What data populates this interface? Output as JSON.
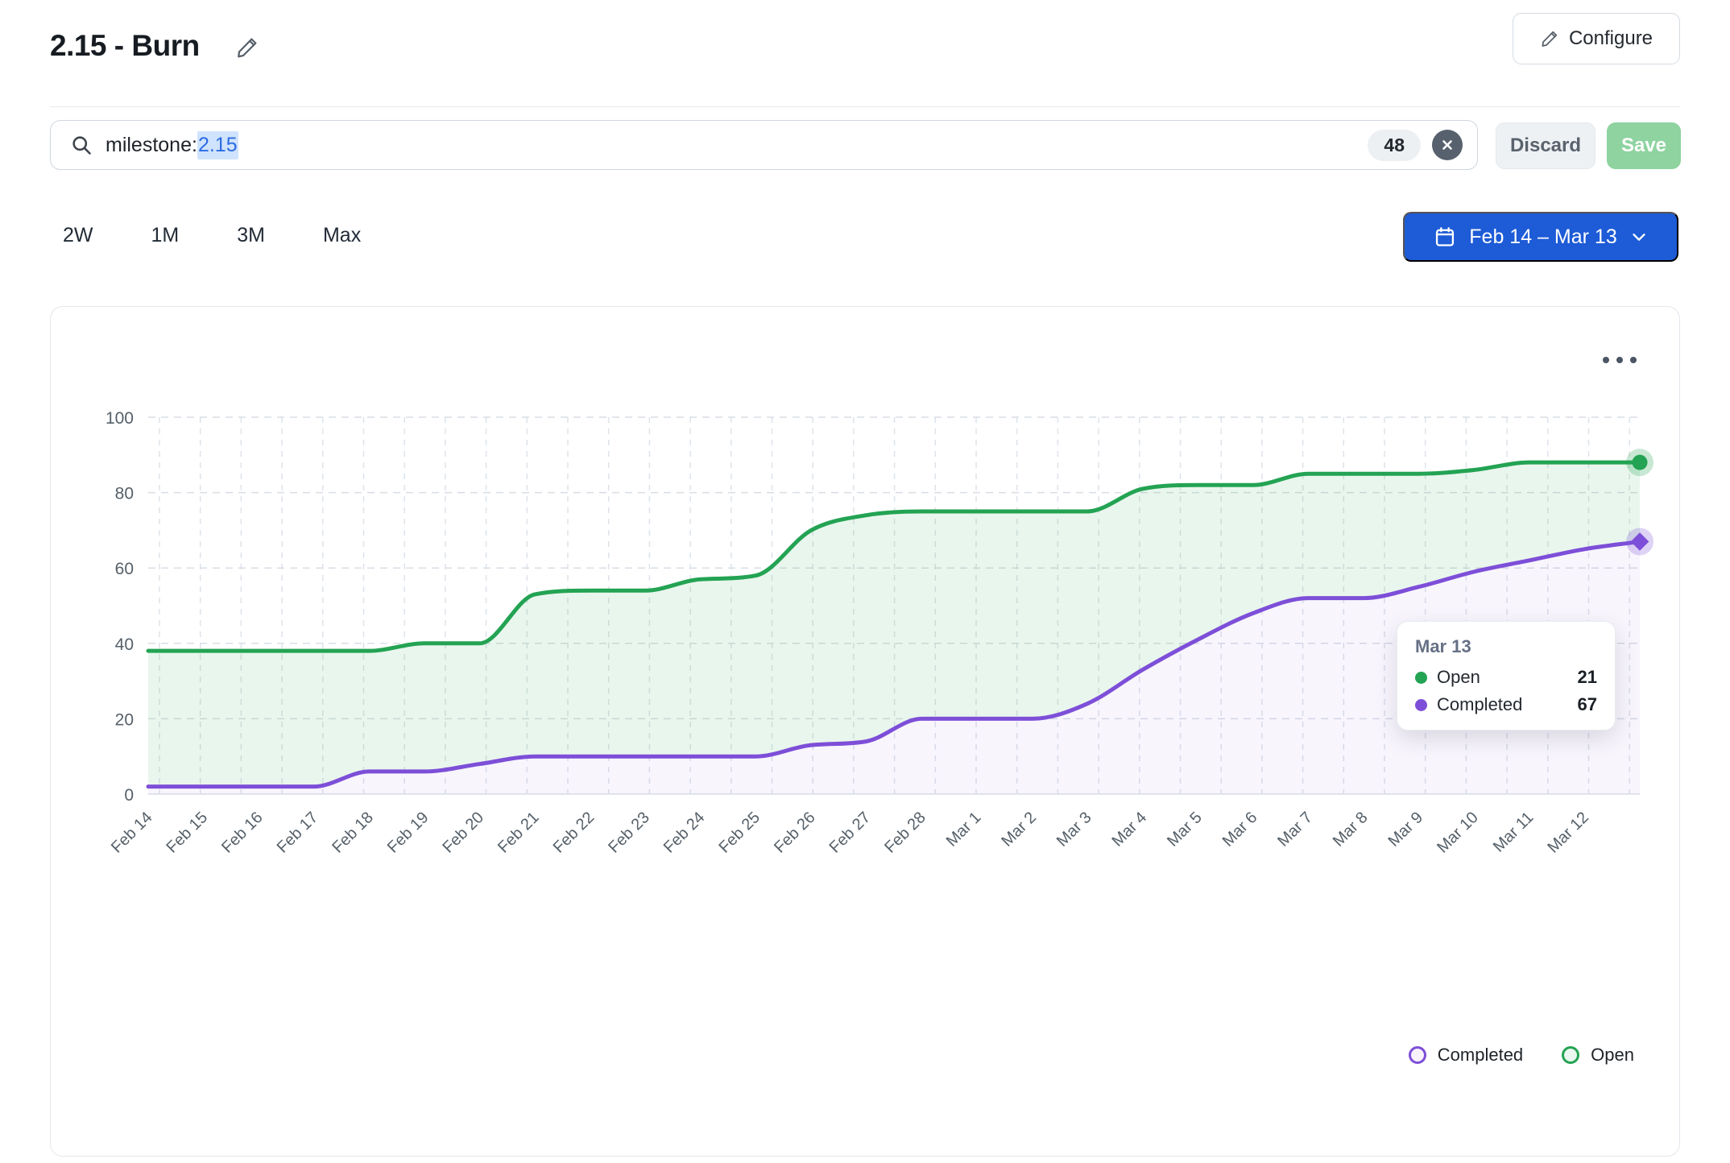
{
  "page": {
    "title": "2.15 - Burn"
  },
  "header": {
    "configure_label": "Configure"
  },
  "filter_bar": {
    "query_prefix": "milestone:",
    "query_value": "2.15",
    "count_badge": "48",
    "clear_glyph": "✕",
    "discard_label": "Discard",
    "save_label": "Save"
  },
  "time_range": {
    "options": [
      "2W",
      "1M",
      "3M",
      "Max"
    ]
  },
  "date_picker": {
    "label": "Feb 14 – Mar 13"
  },
  "chart_data": {
    "type": "area",
    "stacked": true,
    "grid": "dashed",
    "x": [
      "Feb 14",
      "Feb 15",
      "Feb 16",
      "Feb 17",
      "Feb 18",
      "Feb 19",
      "Feb 20",
      "Feb 21",
      "Feb 22",
      "Feb 23",
      "Feb 24",
      "Feb 25",
      "Feb 26",
      "Feb 27",
      "Feb 28",
      "Mar 1",
      "Mar 2",
      "Mar 3",
      "Mar 4",
      "Mar 5",
      "Mar 6",
      "Mar 7",
      "Mar 8",
      "Mar 9",
      "Mar 10",
      "Mar 11",
      "Mar 12",
      "Mar 13"
    ],
    "series": [
      {
        "name": "Completed",
        "color": "#7d4fd8",
        "values": [
          2,
          2,
          2,
          2,
          6,
          6,
          8,
          10,
          10,
          10,
          10,
          10,
          13,
          14,
          20,
          20,
          20,
          24,
          33,
          41,
          48,
          52,
          52,
          55,
          59,
          62,
          65,
          67
        ]
      },
      {
        "name": "Open",
        "color": "#23a353",
        "values": [
          36,
          36,
          36,
          36,
          32,
          34,
          32,
          43,
          44,
          44,
          47,
          48,
          57,
          60,
          55,
          55,
          55,
          51,
          48,
          41,
          34,
          33,
          33,
          30,
          27,
          26,
          23,
          21
        ]
      }
    ],
    "ylim": [
      0,
      100
    ],
    "yticks": [
      0,
      20,
      40,
      60,
      80,
      100
    ],
    "legend": [
      "Completed",
      "Open"
    ],
    "legend_position": "bottom-right"
  },
  "tooltip": {
    "title": "Mar 13",
    "rows": [
      {
        "label": "Open",
        "value": "21",
        "color": "#23a353"
      },
      {
        "label": "Completed",
        "value": "67",
        "color": "#7d4fd8"
      }
    ]
  }
}
